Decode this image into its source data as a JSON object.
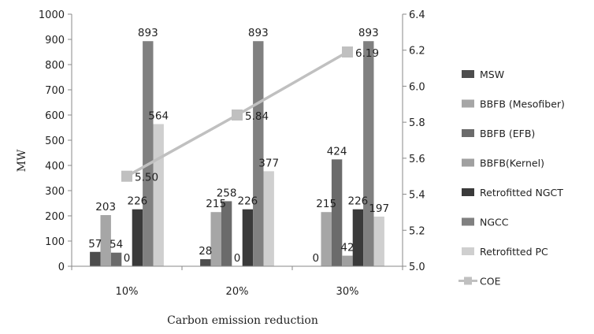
{
  "chart_data": {
    "type": "bar",
    "categories": [
      "10%",
      "20%",
      "30%"
    ],
    "xlabel": "Carbon emission reduction",
    "ylabel": "MW",
    "ylim": [
      0,
      1000
    ],
    "yticks": [
      "0",
      "100",
      "200",
      "300",
      "400",
      "500",
      "600",
      "700",
      "800",
      "900",
      "1000"
    ],
    "y2lim": [
      5.0,
      6.4
    ],
    "y2ticks": [
      "5.0",
      "5.2",
      "5.4",
      "5.6",
      "5.8",
      "6.0",
      "6.2",
      "6.4"
    ],
    "grid": false,
    "legend_position": "right",
    "series": [
      {
        "name": "MSW",
        "color": "#4d4d4d",
        "values": [
          57,
          28,
          0
        ],
        "labels": [
          "57",
          "28",
          "0"
        ]
      },
      {
        "name": "BBFB (Mesofiber)",
        "color": "#a6a6a6",
        "values": [
          203,
          215,
          215
        ],
        "labels": [
          "203",
          "215",
          "215"
        ]
      },
      {
        "name": "BBFB (EFB)",
        "color": "#6b6b6b",
        "values": [
          54,
          258,
          424
        ],
        "labels": [
          "54",
          "258",
          "424"
        ]
      },
      {
        "name": "BBFB(Kernel)",
        "color": "#a0a0a0",
        "values": [
          0,
          0,
          42
        ],
        "labels": [
          "0",
          "0",
          "42"
        ]
      },
      {
        "name": "Retrofitted NGCT",
        "color": "#3a3a3a",
        "values": [
          226,
          226,
          226
        ],
        "labels": [
          "226",
          "226",
          "226"
        ]
      },
      {
        "name": "NGCC",
        "color": "#808080",
        "values": [
          893,
          893,
          893
        ],
        "labels": [
          "893",
          "893",
          "893"
        ]
      },
      {
        "name": "Retrofitted PC",
        "color": "#cfcfcf",
        "values": [
          564,
          377,
          197
        ],
        "labels": [
          "564",
          "377",
          "197"
        ]
      }
    ],
    "line_series": {
      "name": "COE",
      "color": "#c0c0c0",
      "axis": "right",
      "values": [
        5.5,
        5.84,
        6.19
      ],
      "labels": [
        "5.50",
        "5.84",
        "6.19"
      ]
    }
  }
}
